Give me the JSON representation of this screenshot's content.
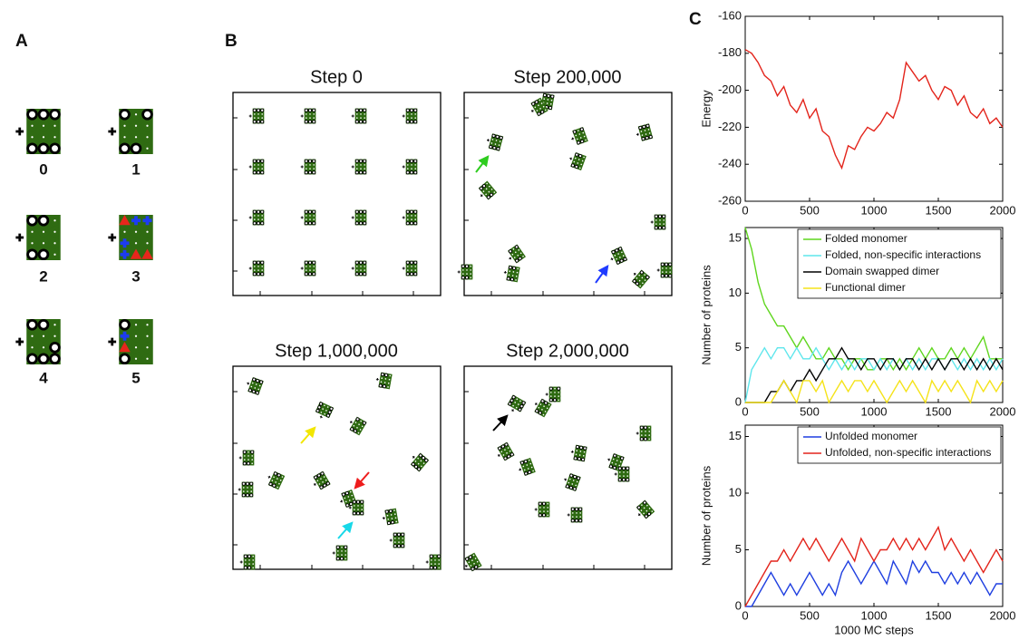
{
  "panels": {
    "a": {
      "label": "A",
      "items": [
        "0",
        "1",
        "2",
        "3",
        "4",
        "5"
      ]
    },
    "b": {
      "label": "B",
      "titles": [
        "Step 0",
        "Step 200,000",
        "Step 1,000,000",
        "Step 2,000,000"
      ]
    },
    "c": {
      "label": "C"
    }
  },
  "chart_data": [
    {
      "type": "line",
      "ylabel": "Energy",
      "x": [
        0,
        50,
        100,
        150,
        200,
        250,
        300,
        350,
        400,
        450,
        500,
        550,
        600,
        650,
        700,
        750,
        800,
        850,
        900,
        950,
        1000,
        1050,
        1100,
        1150,
        1200,
        1250,
        1300,
        1350,
        1400,
        1450,
        1500,
        1550,
        1600,
        1650,
        1700,
        1750,
        1800,
        1850,
        1900,
        1950,
        2000
      ],
      "xlim": [
        0,
        2000
      ],
      "xticks": [
        0,
        500,
        1000,
        1500,
        2000
      ],
      "ylim": [
        -260,
        -160
      ],
      "yticks": [
        -260,
        -240,
        -220,
        -200,
        -180,
        -160
      ],
      "series": [
        {
          "color": "#e3241b",
          "values": [
            -178,
            -180,
            -185,
            -192,
            -195,
            -203,
            -198,
            -208,
            -212,
            -205,
            -215,
            -210,
            -222,
            -225,
            -235,
            -242,
            -230,
            -232,
            -225,
            -220,
            -222,
            -218,
            -212,
            -215,
            -205,
            -185,
            -190,
            -195,
            -192,
            -200,
            -205,
            -198,
            -200,
            -208,
            -203,
            -212,
            -215,
            -210,
            -218,
            -215,
            -220
          ]
        }
      ]
    },
    {
      "type": "line",
      "ylabel": "Number of proteins",
      "legend": "upper right",
      "x": [
        0,
        50,
        100,
        150,
        200,
        250,
        300,
        350,
        400,
        450,
        500,
        550,
        600,
        650,
        700,
        750,
        800,
        850,
        900,
        950,
        1000,
        1050,
        1100,
        1150,
        1200,
        1250,
        1300,
        1350,
        1400,
        1450,
        1500,
        1550,
        1600,
        1650,
        1700,
        1750,
        1800,
        1850,
        1900,
        1950,
        2000
      ],
      "xlim": [
        0,
        2000
      ],
      "xticks": [
        0,
        500,
        1000,
        1500,
        2000
      ],
      "ylim": [
        0,
        16
      ],
      "yticks": [
        0,
        5,
        10,
        15
      ],
      "series": [
        {
          "name": "Folded monomer",
          "color": "#5fd61e",
          "values": [
            16,
            14,
            11,
            9,
            8,
            7,
            7,
            6,
            5,
            6,
            5,
            4,
            4,
            5,
            4,
            4,
            3,
            4,
            4,
            3,
            3,
            4,
            4,
            3,
            4,
            3,
            4,
            5,
            4,
            5,
            4,
            4,
            5,
            4,
            5,
            4,
            5,
            6,
            4,
            4,
            4
          ]
        },
        {
          "name": "Folded, non-specific interactions",
          "color": "#5ee6ec",
          "values": [
            0,
            3,
            4,
            5,
            4,
            5,
            5,
            4,
            5,
            4,
            4,
            5,
            4,
            3,
            4,
            3,
            4,
            3,
            4,
            4,
            3,
            4,
            3,
            4,
            3,
            4,
            3,
            4,
            3,
            4,
            4,
            3,
            4,
            3,
            4,
            3,
            4,
            3,
            4,
            3,
            4
          ]
        },
        {
          "name": "Domain swapped dimer",
          "color": "#000000",
          "values": [
            0,
            0,
            0,
            0,
            1,
            1,
            2,
            1,
            2,
            2,
            3,
            2,
            3,
            4,
            4,
            5,
            4,
            4,
            3,
            4,
            4,
            3,
            4,
            4,
            3,
            4,
            4,
            3,
            4,
            3,
            4,
            3,
            4,
            4,
            3,
            4,
            3,
            4,
            3,
            4,
            3
          ]
        },
        {
          "name": "Functional dimer",
          "color": "#f5e31a",
          "values": [
            0,
            0,
            0,
            0,
            0,
            1,
            2,
            1,
            0,
            2,
            2,
            1,
            2,
            0,
            1,
            2,
            1,
            2,
            2,
            1,
            2,
            1,
            0,
            1,
            2,
            1,
            2,
            1,
            0,
            2,
            1,
            2,
            1,
            2,
            1,
            0,
            2,
            1,
            2,
            1,
            2
          ]
        }
      ]
    },
    {
      "type": "line",
      "ylabel": "Number of proteins",
      "xlabel": "1000 MC steps",
      "legend": "upper right",
      "x": [
        0,
        50,
        100,
        150,
        200,
        250,
        300,
        350,
        400,
        450,
        500,
        550,
        600,
        650,
        700,
        750,
        800,
        850,
        900,
        950,
        1000,
        1050,
        1100,
        1150,
        1200,
        1250,
        1300,
        1350,
        1400,
        1450,
        1500,
        1550,
        1600,
        1650,
        1700,
        1750,
        1800,
        1850,
        1900,
        1950,
        2000
      ],
      "xlim": [
        0,
        2000
      ],
      "xticks": [
        0,
        500,
        1000,
        1500,
        2000
      ],
      "ylim": [
        0,
        16
      ],
      "yticks": [
        0,
        5,
        10,
        15
      ],
      "series": [
        {
          "name": "Unfolded monomer",
          "color": "#1f3fe0",
          "values": [
            0,
            0,
            1,
            2,
            3,
            2,
            1,
            2,
            1,
            2,
            3,
            2,
            1,
            2,
            1,
            3,
            4,
            3,
            2,
            3,
            4,
            3,
            2,
            4,
            3,
            2,
            4,
            3,
            4,
            3,
            3,
            2,
            3,
            2,
            3,
            2,
            3,
            2,
            1,
            2,
            2
          ]
        },
        {
          "name": "Unfolded, non-specific interactions",
          "color": "#e3241b",
          "values": [
            0,
            1,
            2,
            3,
            4,
            4,
            5,
            4,
            5,
            6,
            5,
            6,
            5,
            4,
            5,
            6,
            5,
            4,
            6,
            5,
            4,
            5,
            5,
            6,
            5,
            6,
            5,
            6,
            5,
            6,
            7,
            5,
            6,
            5,
            4,
            5,
            4,
            3,
            4,
            5,
            4
          ]
        }
      ]
    }
  ]
}
